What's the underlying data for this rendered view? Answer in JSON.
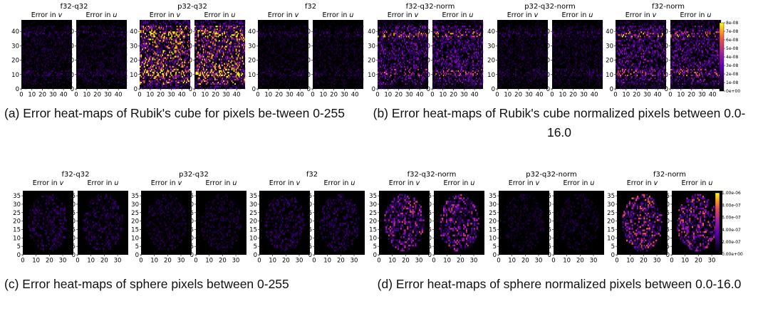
{
  "figure": {
    "captions": {
      "a": "(a) Error heat-maps of Rubik's cube for pixels be-tween 0-255",
      "b": "(b) Error heat-maps of Rubik's cube normalized pixels between 0.0-16.0",
      "c": "(c) Error heat-maps of sphere pixels between 0-255",
      "d": "(d) Error heat-maps of sphere normalized pixels between 0.0-16.0"
    }
  },
  "chart_data": [
    {
      "type": "heatmap",
      "subject": "rubiks-cube",
      "panels": [
        {
          "title": "f32-q32",
          "subplots": [
            {
              "title_prefix": "Error in ",
              "title_var": "v"
            },
            {
              "title_prefix": "Error in ",
              "title_var": "u"
            }
          ],
          "intensity": 0.1
        },
        {
          "title": "p32-q32",
          "subplots": [
            {
              "title_prefix": "Error in ",
              "title_var": "v"
            },
            {
              "title_prefix": "Error in ",
              "title_var": "u"
            }
          ],
          "intensity": 0.6
        },
        {
          "title": "f32",
          "subplots": [
            {
              "title_prefix": "Error in ",
              "title_var": "v"
            },
            {
              "title_prefix": "Error in ",
              "title_var": "u"
            }
          ],
          "intensity": 0.08
        },
        {
          "title": "f32-q32-norm",
          "subplots": [
            {
              "title_prefix": "Error in ",
              "title_var": "v"
            },
            {
              "title_prefix": "Error in ",
              "title_var": "u"
            }
          ],
          "intensity": 0.3
        },
        {
          "title": "p32-q32-norm",
          "subplots": [
            {
              "title_prefix": "Error in ",
              "title_var": "v"
            },
            {
              "title_prefix": "Error in ",
              "title_var": "u"
            }
          ],
          "intensity": 0.1
        },
        {
          "title": "f32-norm",
          "subplots": [
            {
              "title_prefix": "Error in ",
              "title_var": "v"
            },
            {
              "title_prefix": "Error in ",
              "title_var": "u"
            }
          ],
          "intensity": 0.32
        }
      ],
      "xticks": [
        "0",
        "10",
        "20",
        "30",
        "40"
      ],
      "yticks": [
        "0",
        "10",
        "20",
        "30",
        "40"
      ],
      "xlim": [
        0,
        48
      ],
      "ylim": [
        0,
        48
      ],
      "colorbar": {
        "ticks": [
          "8e-08",
          "7e-08",
          "6e-08",
          "5e-08",
          "4e-08",
          "3e-08",
          "2e-08",
          "1e-08",
          "0e+00"
        ],
        "min": 0,
        "max": 8e-08
      }
    },
    {
      "type": "heatmap",
      "subject": "sphere",
      "panels": [
        {
          "title": "f32-q32",
          "subplots": [
            {
              "title_prefix": "Error in ",
              "title_var": "v"
            },
            {
              "title_prefix": "Error in ",
              "title_var": "u"
            }
          ],
          "intensity": 0.14
        },
        {
          "title": "p32-q32",
          "subplots": [
            {
              "title_prefix": "Error in ",
              "title_var": "v"
            },
            {
              "title_prefix": "Error in ",
              "title_var": "u"
            }
          ],
          "intensity": 0.1
        },
        {
          "title": "f32",
          "subplots": [
            {
              "title_prefix": "Error in ",
              "title_var": "v"
            },
            {
              "title_prefix": "Error in ",
              "title_var": "u"
            }
          ],
          "intensity": 0.14
        },
        {
          "title": "f32-q32-norm",
          "subplots": [
            {
              "title_prefix": "Error in ",
              "title_var": "v"
            },
            {
              "title_prefix": "Error in ",
              "title_var": "u"
            }
          ],
          "intensity": 0.4
        },
        {
          "title": "p32-q32-norm",
          "subplots": [
            {
              "title_prefix": "Error in ",
              "title_var": "v"
            },
            {
              "title_prefix": "Error in ",
              "title_var": "u"
            }
          ],
          "intensity": 0.08
        },
        {
          "title": "f32-norm",
          "subplots": [
            {
              "title_prefix": "Error in ",
              "title_var": "v"
            },
            {
              "title_prefix": "Error in ",
              "title_var": "u"
            }
          ],
          "intensity": 0.45
        }
      ],
      "xticks": [
        "0",
        "10",
        "20",
        "30"
      ],
      "yticks": [
        "0",
        "5",
        "10",
        "15",
        "20",
        "25",
        "30",
        "35"
      ],
      "xlim": [
        0,
        38
      ],
      "ylim": [
        0,
        38
      ],
      "colorbar": {
        "ticks": [
          "1.00e-06",
          "8.00e-07",
          "6.00e-07",
          "4.00e-07",
          "2.00e-07",
          "0.00e+00"
        ],
        "min": 0,
        "max": 1e-06
      }
    }
  ]
}
